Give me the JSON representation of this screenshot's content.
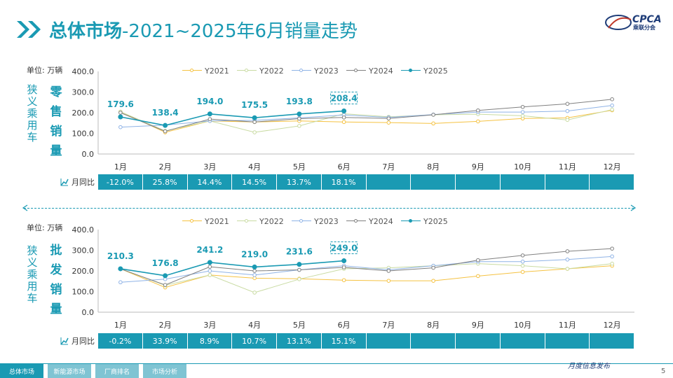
{
  "header": {
    "title_bold": "总体市场",
    "title_rest": "-2021~2025年6月销量走势",
    "brand": "乘联分会",
    "logo_text": "CPCA"
  },
  "panels": [
    {
      "unit_label": "单位: 万辆",
      "side_label_gray": "狭义乘用车",
      "side_label_bold": "零售销量",
      "yoy_label": "月同比",
      "yoy_values": [
        "-12.0%",
        "25.8%",
        "14.4%",
        "14.5%",
        "13.7%",
        "18.1%",
        "",
        "",
        "",
        "",
        "",
        ""
      ],
      "highlight_value": "208.4"
    },
    {
      "unit_label": "单位: 万辆",
      "side_label_gray": "狭义乘用车",
      "side_label_bold": "批发销量",
      "yoy_label": "月同比",
      "yoy_values": [
        "-0.2%",
        "33.9%",
        "8.9%",
        "10.7%",
        "13.1%",
        "15.1%",
        "",
        "",
        "",
        "",
        "",
        ""
      ],
      "highlight_value": "249.0"
    }
  ],
  "chart_data": [
    {
      "type": "line",
      "categories": [
        "1月",
        "2月",
        "3月",
        "4月",
        "5月",
        "6月",
        "7月",
        "8月",
        "9月",
        "10月",
        "11月",
        "12月"
      ],
      "ylim": [
        0,
        400
      ],
      "yticks": [
        "0.0",
        "100.0",
        "200.0",
        "300.0",
        "400.0"
      ],
      "legend_position": "top",
      "series": [
        {
          "name": "Y2021",
          "color": "#f5c242",
          "values": [
            205,
            105,
            160,
            155,
            160,
            155,
            152,
            148,
            158,
            172,
            175,
            212
          ]
        },
        {
          "name": "Y2022",
          "color": "#c9dba3",
          "values": [
            205,
            112,
            160,
            105,
            136,
            195,
            180,
            190,
            193,
            185,
            165,
            215
          ]
        },
        {
          "name": "Y2023",
          "color": "#8fb3e6",
          "values": [
            130,
            140,
            160,
            163,
            175,
            189,
            177,
            191,
            203,
            203,
            208,
            235
          ]
        },
        {
          "name": "Y2024",
          "color": "#808080",
          "values": [
            200,
            110,
            169,
            155,
            171,
            177,
            172,
            190,
            211,
            228,
            243,
            265
          ]
        },
        {
          "name": "Y2025",
          "color": "#1a9ab3",
          "values": [
            179.6,
            138.4,
            194.0,
            175.5,
            193.8,
            208.4,
            null,
            null,
            null,
            null,
            null,
            null
          ],
          "labels": [
            "179.6",
            "138.4",
            "194.0",
            "175.5",
            "193.8",
            "208.4"
          ]
        }
      ]
    },
    {
      "type": "line",
      "categories": [
        "1月",
        "2月",
        "3月",
        "4月",
        "5月",
        "6月",
        "7月",
        "8月",
        "9月",
        "10月",
        "11月",
        "12月"
      ],
      "ylim": [
        0,
        400
      ],
      "yticks": [
        "0.0",
        "100.0",
        "200.0",
        "300.0",
        "400.0"
      ],
      "legend_position": "top",
      "series": [
        {
          "name": "Y2021",
          "color": "#f5c242",
          "values": [
            210,
            120,
            180,
            165,
            162,
            155,
            152,
            152,
            175,
            195,
            210,
            225
          ]
        },
        {
          "name": "Y2022",
          "color": "#c9dba3",
          "values": [
            210,
            130,
            180,
            95,
            160,
            210,
            215,
            225,
            235,
            225,
            210,
            235
          ]
        },
        {
          "name": "Y2023",
          "color": "#8fb3e6",
          "values": [
            145,
            160,
            200,
            180,
            205,
            225,
            205,
            225,
            245,
            245,
            255,
            270
          ]
        },
        {
          "name": "Y2024",
          "color": "#808080",
          "values": [
            210,
            132,
            220,
            200,
            205,
            217,
            200,
            215,
            252,
            275,
            295,
            308
          ]
        },
        {
          "name": "Y2025",
          "color": "#1a9ab3",
          "values": [
            210.3,
            176.8,
            241.2,
            219.0,
            231.6,
            249.0,
            null,
            null,
            null,
            null,
            null,
            null
          ],
          "labels": [
            "210.3",
            "176.8",
            "241.2",
            "219.0",
            "231.6",
            "249.0"
          ]
        }
      ]
    }
  ],
  "footer": {
    "tabs": [
      "总体市场",
      "新能源市场",
      "厂商排名",
      "市场分析"
    ],
    "monthly_text": "月度信息发布",
    "page_number": "5"
  }
}
